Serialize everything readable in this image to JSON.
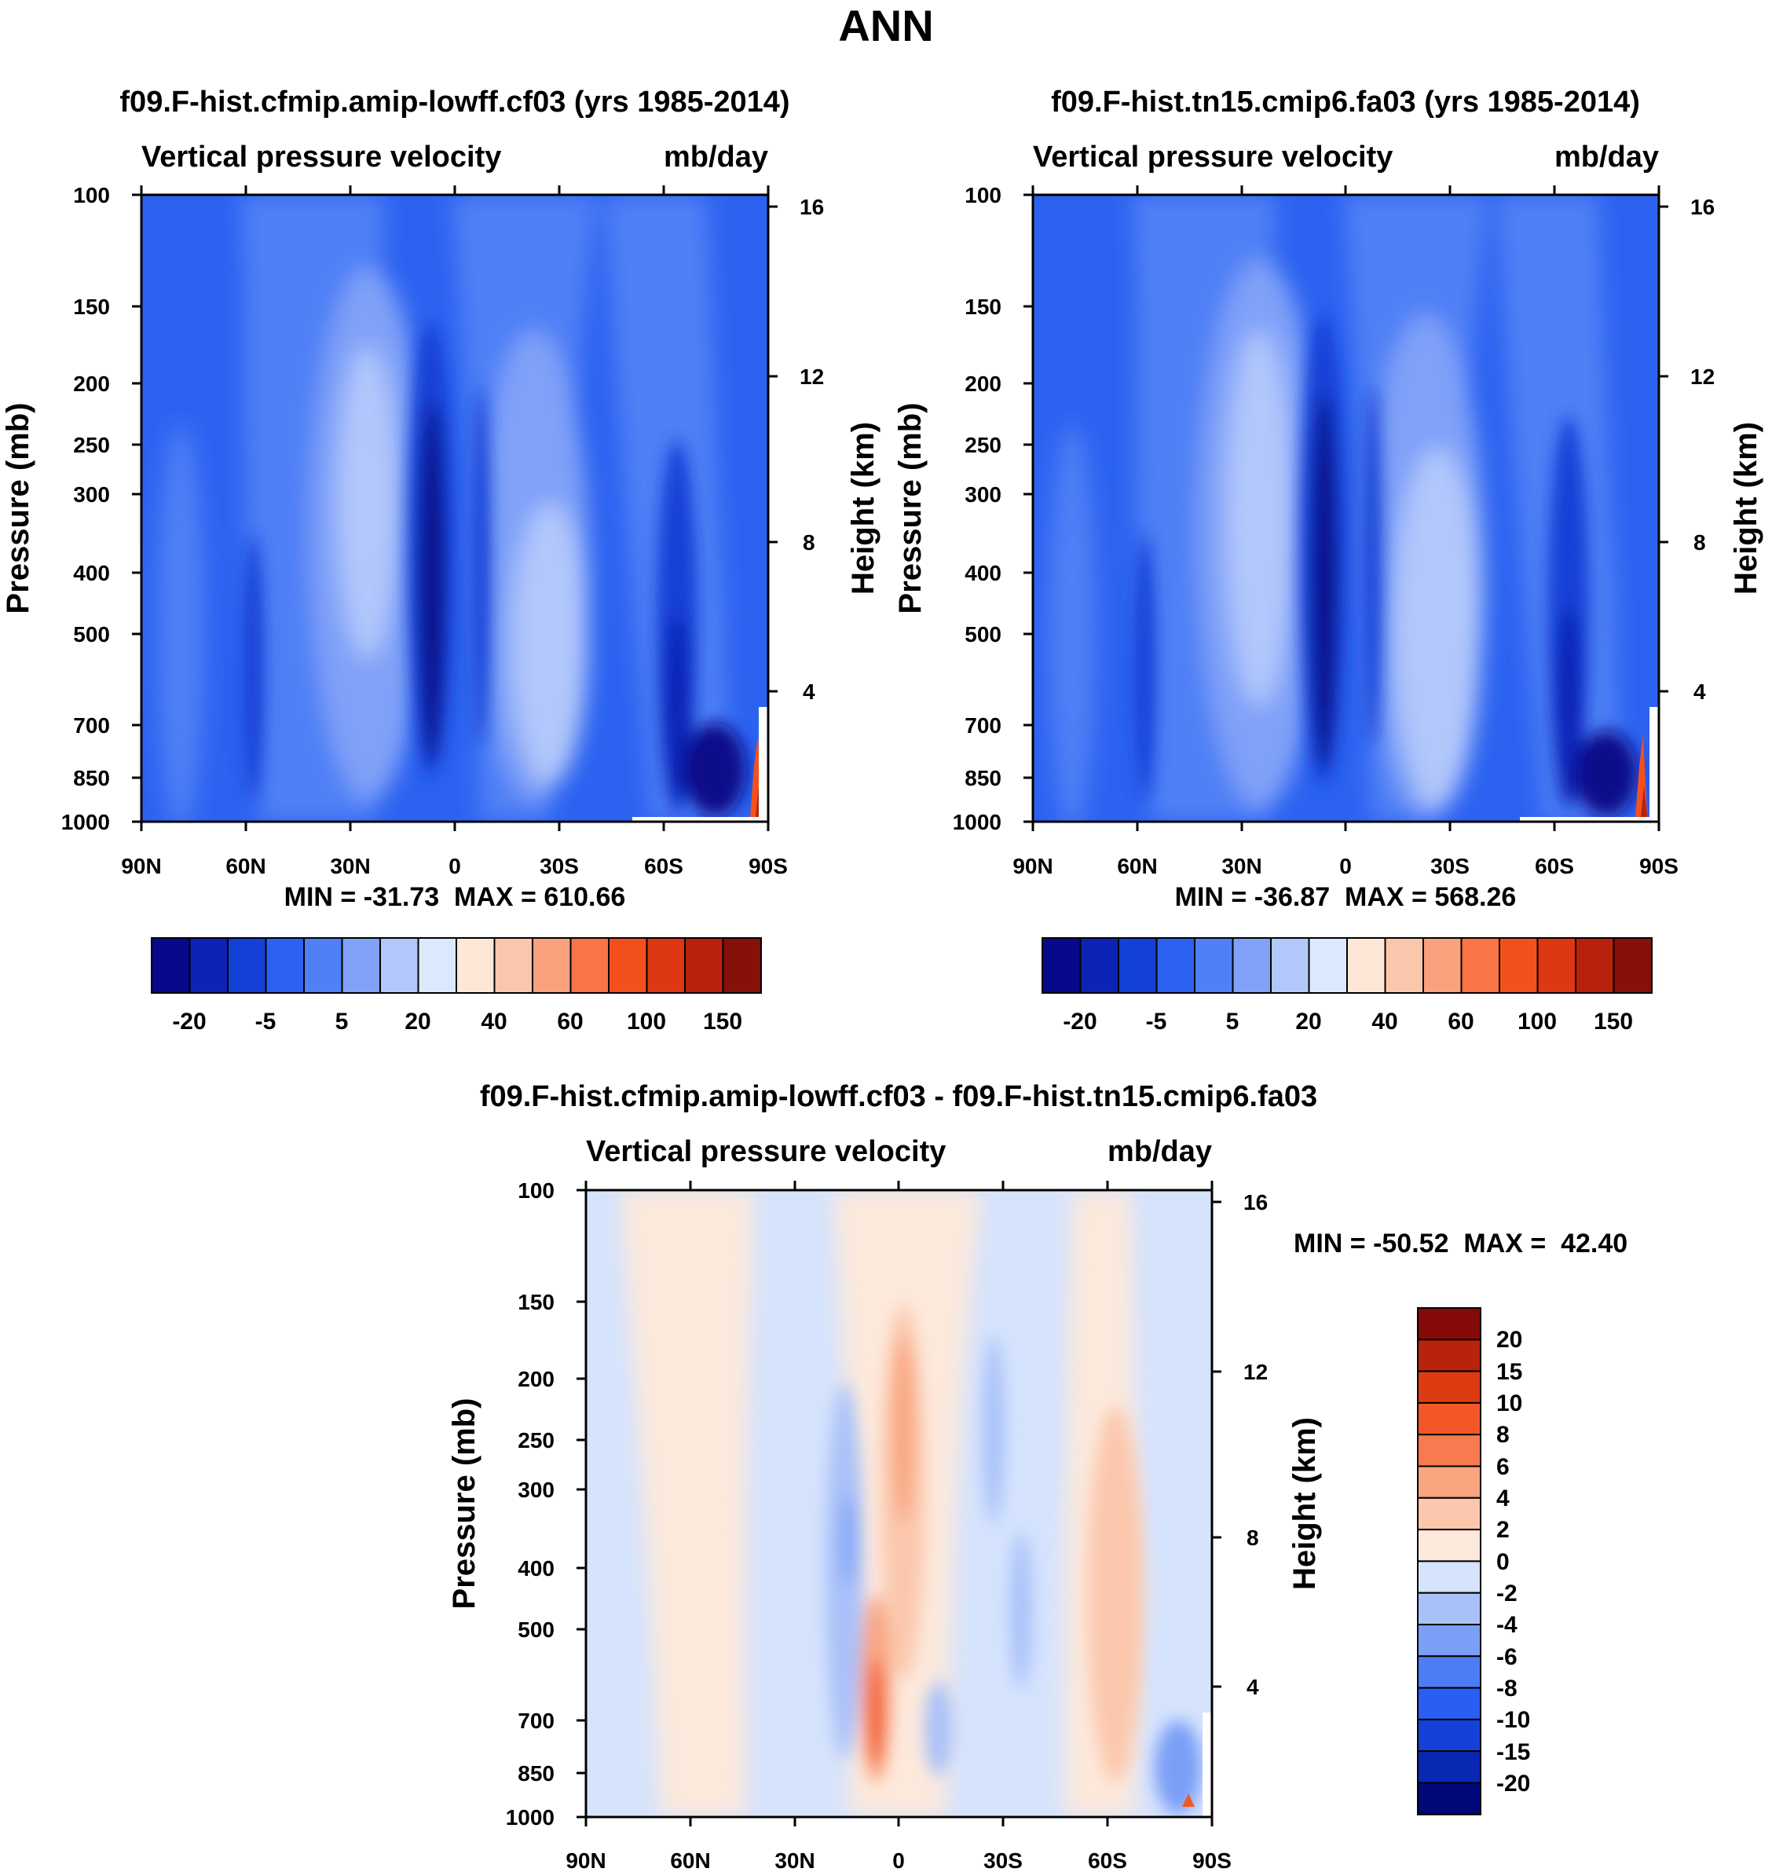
{
  "figure_title": "ANN",
  "colors": {
    "blues": [
      "#08088a",
      "#0c23b5",
      "#1341d6",
      "#2b62f0",
      "#4f80f6",
      "#7fa1f8",
      "#b2c8fb",
      "#dce8fe"
    ],
    "reds": [
      "#fde8d8",
      "#fbc7ac",
      "#f9a27d",
      "#f97447",
      "#f4501e",
      "#de3812",
      "#b8220c",
      "#86100a"
    ],
    "diff_blues": [
      "#010878",
      "#0828b3",
      "#1541d8",
      "#2a5ef2",
      "#4d7df5",
      "#7a9ff7",
      "#a9c1f9",
      "#d5e3fd"
    ],
    "diff_reds": [
      "#fde9dc",
      "#fbc8ad",
      "#f9a57f",
      "#f77b4f",
      "#f35728",
      "#dd3b11",
      "#b7230b",
      "#830a09"
    ]
  },
  "chart_data": [
    {
      "type": "heatmap",
      "panel": "left",
      "title": "f09.F-hist.cfmip.amip-lowff.cf03 (yrs 1985-2014)",
      "subtitle_left": "Vertical pressure velocity",
      "subtitle_right": "mb/day",
      "ylabel": "Pressure (mb)",
      "y2label": "Height (km)",
      "xticks": [
        "90N",
        "60N",
        "30N",
        "0",
        "30S",
        "60S",
        "90S"
      ],
      "yticks": [
        "100",
        "150",
        "200",
        "250",
        "300",
        "400",
        "500",
        "700",
        "850",
        "1000"
      ],
      "y2ticks": [
        "16",
        "12",
        "8",
        "4"
      ],
      "xlim": [
        90,
        -90
      ],
      "ylim": [
        1000,
        100
      ],
      "stats": "MIN = -31.73  MAX = 610.66",
      "colorbar_labels": [
        "-20",
        "-5",
        "5",
        "20",
        "40",
        "60",
        "100",
        "150"
      ]
    },
    {
      "type": "heatmap",
      "panel": "right",
      "title": "f09.F-hist.tn15.cmip6.fa03 (yrs 1985-2014)",
      "subtitle_left": "Vertical pressure velocity",
      "subtitle_right": "mb/day",
      "ylabel": "Pressure (mb)",
      "y2label": "Height (km)",
      "xticks": [
        "90N",
        "60N",
        "30N",
        "0",
        "30S",
        "60S",
        "90S"
      ],
      "yticks": [
        "100",
        "150",
        "200",
        "250",
        "300",
        "400",
        "500",
        "700",
        "850",
        "1000"
      ],
      "y2ticks": [
        "16",
        "12",
        "8",
        "4"
      ],
      "xlim": [
        90,
        -90
      ],
      "ylim": [
        1000,
        100
      ],
      "stats": "MIN = -36.87  MAX = 568.26",
      "colorbar_labels": [
        "-20",
        "-5",
        "5",
        "20",
        "40",
        "60",
        "100",
        "150"
      ]
    },
    {
      "type": "heatmap",
      "panel": "difference",
      "title": "f09.F-hist.cfmip.amip-lowff.cf03 - f09.F-hist.tn15.cmip6.fa03",
      "subtitle_left": "Vertical pressure velocity",
      "subtitle_right": "mb/day",
      "ylabel": "Pressure (mb)",
      "y2label": "Height (km)",
      "xticks": [
        "90N",
        "60N",
        "30N",
        "0",
        "30S",
        "60S",
        "90S"
      ],
      "yticks": [
        "100",
        "150",
        "200",
        "250",
        "300",
        "400",
        "500",
        "700",
        "850",
        "1000"
      ],
      "y2ticks": [
        "16",
        "12",
        "8",
        "4"
      ],
      "xlim": [
        90,
        -90
      ],
      "ylim": [
        1000,
        100
      ],
      "stats": "MIN = -50.52  MAX =  42.40",
      "colorbar_labels": [
        "20",
        "15",
        "10",
        "8",
        "6",
        "4",
        "2",
        "0",
        "-2",
        "-4",
        "-6",
        "-8",
        "-10",
        "-15",
        "-20"
      ]
    }
  ]
}
